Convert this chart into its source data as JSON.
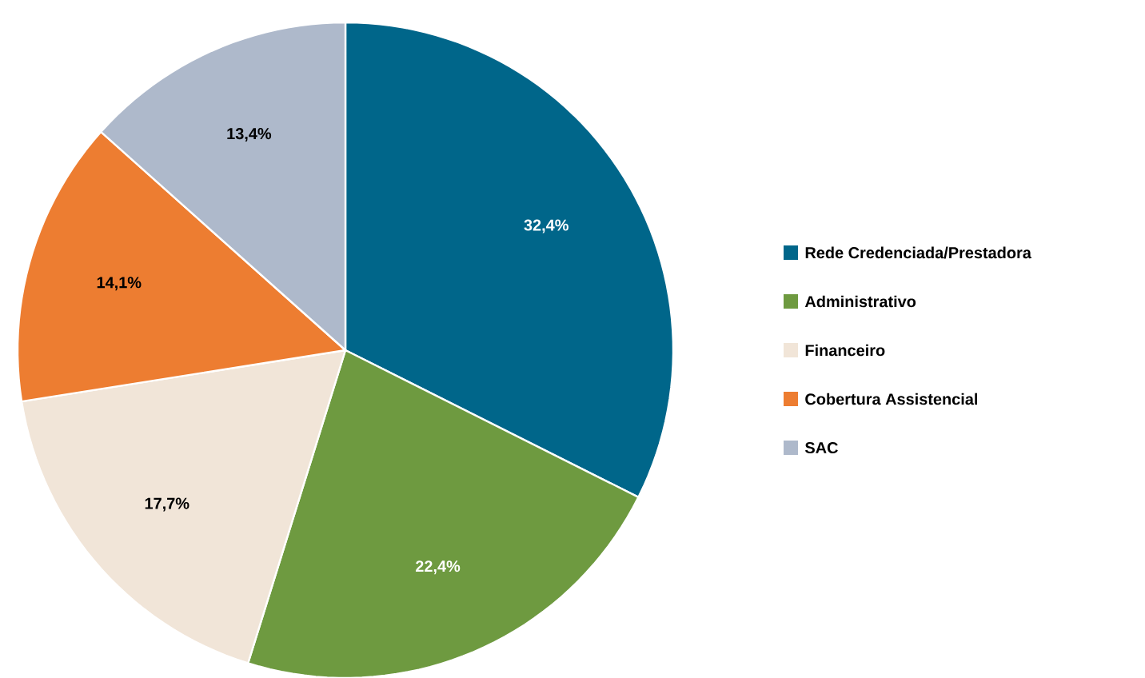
{
  "chart_data": {
    "type": "pie",
    "categories": [
      "Rede Credenciada/Prestadora",
      "Administrativo",
      "Financeiro",
      "Cobertura Assistencial",
      "SAC"
    ],
    "values": [
      32.4,
      22.4,
      17.7,
      14.1,
      13.4
    ],
    "value_labels": [
      "32,4%",
      "22,4%",
      "17,7%",
      "14,1%",
      "13,4%"
    ],
    "colors": [
      "#00668a",
      "#6e9a40",
      "#f1e5d8",
      "#ed7d31",
      "#aeb9cb"
    ],
    "legend": "right"
  }
}
